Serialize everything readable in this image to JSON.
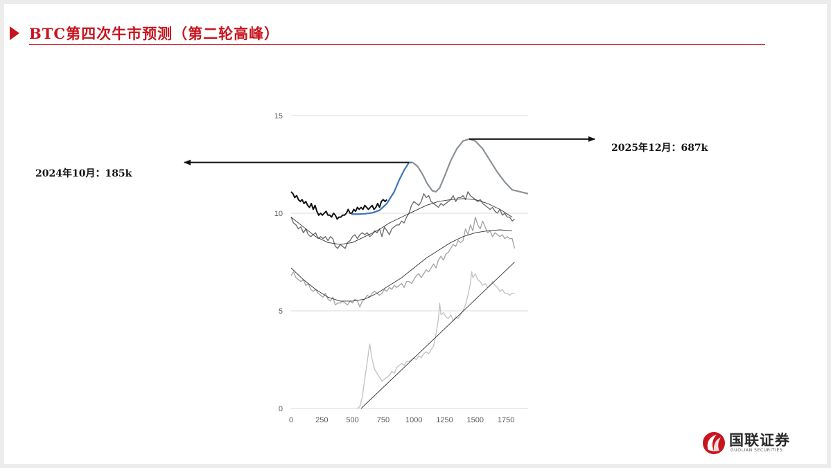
{
  "header": {
    "title": "BTC第四次牛市预测（第二轮高峰）"
  },
  "annotations": {
    "left": "2024年10月：185k",
    "right": "2025年12月：687k"
  },
  "logo": {
    "name": "国联证券",
    "subtitle": "GUOLIAN SECURITIES",
    "icon": "guolian-logo-icon"
  },
  "colors": {
    "accent": "#c8141e",
    "projection": "#3f74b8",
    "peak_curve": "#8a9197"
  },
  "chart_data": {
    "type": "line",
    "title": "",
    "xlabel": "",
    "ylabel": "",
    "xlim": [
      0,
      1930
    ],
    "ylim": [
      0,
      15
    ],
    "xticks": [
      0,
      250,
      500,
      750,
      1000,
      1250,
      1500,
      1750
    ],
    "yticks": [
      0,
      5,
      10,
      15
    ],
    "grid": "horizontal",
    "series": [
      {
        "kind": "price",
        "color": "#c4c4c4",
        "x": [
          540,
          560,
          580,
          600,
          620,
          640,
          660,
          680,
          700,
          720,
          740,
          760,
          780,
          800,
          820,
          840,
          860,
          880,
          900,
          920,
          940,
          960,
          980,
          1000,
          1020,
          1040,
          1060,
          1080,
          1100,
          1120,
          1140,
          1160,
          1180,
          1200,
          1210,
          1220,
          1240,
          1260,
          1280,
          1300,
          1320,
          1340,
          1360,
          1380,
          1400,
          1420,
          1440,
          1460,
          1470,
          1480,
          1500,
          1520,
          1540,
          1560,
          1580,
          1600,
          1620,
          1640,
          1660,
          1680,
          1700,
          1720,
          1740,
          1760,
          1780,
          1800,
          1820
        ],
        "y": [
          0.0,
          0.1,
          0.6,
          1.5,
          2.4,
          3.3,
          2.5,
          2.0,
          1.8,
          1.6,
          1.4,
          1.5,
          1.6,
          1.7,
          1.9,
          1.8,
          2.1,
          2.2,
          2.3,
          2.2,
          2.4,
          2.4,
          2.5,
          2.6,
          2.5,
          2.7,
          2.6,
          2.8,
          2.9,
          2.8,
          3.0,
          3.2,
          3.8,
          4.6,
          5.4,
          4.8,
          4.9,
          4.7,
          4.6,
          4.8,
          4.5,
          4.7,
          4.6,
          4.8,
          5.0,
          5.3,
          5.8,
          6.4,
          7.0,
          6.7,
          6.9,
          6.6,
          6.5,
          6.3,
          6.4,
          6.2,
          6.3,
          6.5,
          6.3,
          6.2,
          6.0,
          6.1,
          5.9,
          5.9,
          5.8,
          5.9,
          5.9
        ]
      },
      {
        "kind": "price",
        "color": "#a6a6a6",
        "x": [
          0,
          20,
          40,
          60,
          80,
          100,
          120,
          140,
          160,
          180,
          200,
          220,
          240,
          260,
          280,
          300,
          320,
          340,
          360,
          380,
          400,
          420,
          440,
          460,
          480,
          500,
          520,
          540,
          560,
          580,
          600,
          620,
          640,
          660,
          680,
          700,
          720,
          740,
          760,
          780,
          800,
          820,
          840,
          860,
          880,
          900,
          920,
          940,
          960,
          980,
          1000,
          1020,
          1040,
          1060,
          1080,
          1100,
          1120,
          1140,
          1160,
          1180,
          1200,
          1220,
          1240,
          1260,
          1280,
          1300,
          1320,
          1340,
          1360,
          1380,
          1400,
          1420,
          1440,
          1460,
          1480,
          1500,
          1520,
          1540,
          1560,
          1580,
          1600,
          1620,
          1640,
          1660,
          1680,
          1700,
          1720,
          1740,
          1760,
          1780,
          1800,
          1820
        ],
        "y": [
          6.8,
          7.0,
          6.7,
          6.6,
          6.5,
          6.6,
          6.3,
          6.4,
          6.1,
          6.0,
          6.1,
          5.9,
          5.8,
          5.7,
          5.9,
          5.6,
          5.5,
          5.7,
          5.3,
          5.4,
          5.4,
          5.5,
          5.4,
          5.3,
          5.5,
          5.4,
          5.6,
          5.5,
          5.2,
          5.5,
          5.6,
          5.8,
          5.7,
          5.9,
          6.0,
          5.9,
          5.8,
          5.9,
          6.1,
          6.0,
          6.2,
          6.1,
          6.3,
          6.2,
          6.3,
          6.4,
          6.2,
          6.5,
          6.5,
          6.4,
          6.6,
          6.8,
          6.9,
          6.7,
          6.9,
          7.1,
          7.0,
          7.2,
          7.4,
          7.2,
          7.6,
          7.8,
          7.6,
          7.9,
          8.0,
          8.2,
          8.4,
          8.3,
          8.6,
          8.5,
          8.6,
          9.2,
          8.9,
          9.4,
          9.1,
          9.8,
          9.4,
          9.2,
          9.6,
          9.3,
          9.0,
          9.1,
          8.8,
          9.0,
          8.9,
          8.8,
          8.9,
          8.7,
          8.8,
          8.7,
          8.7,
          8.2
        ]
      },
      {
        "kind": "price",
        "color": "#6e6e6e",
        "x": [
          0,
          20,
          40,
          60,
          80,
          100,
          120,
          140,
          160,
          180,
          200,
          220,
          240,
          260,
          280,
          300,
          320,
          340,
          360,
          380,
          400,
          420,
          440,
          460,
          480,
          500,
          520,
          540,
          560,
          580,
          600,
          620,
          640,
          660,
          680,
          700,
          720,
          740,
          760,
          780,
          800,
          820,
          840,
          860,
          880,
          900,
          920,
          940,
          960,
          980,
          1000,
          1020,
          1040,
          1060,
          1080,
          1100,
          1120,
          1140,
          1160,
          1180,
          1200,
          1220,
          1240,
          1260,
          1280,
          1300,
          1320,
          1340,
          1360,
          1380,
          1400,
          1420,
          1440,
          1460,
          1480,
          1500,
          1520,
          1540,
          1560,
          1580,
          1600,
          1620,
          1640,
          1660,
          1680,
          1700,
          1720,
          1740,
          1760,
          1780,
          1800,
          1820
        ],
        "y": [
          9.8,
          9.5,
          9.4,
          9.2,
          9.3,
          9.0,
          9.2,
          8.9,
          8.8,
          8.9,
          9.0,
          8.7,
          8.8,
          8.7,
          8.8,
          8.6,
          8.8,
          8.7,
          8.3,
          8.2,
          8.4,
          8.3,
          8.2,
          8.5,
          8.6,
          8.8,
          8.9,
          8.7,
          8.9,
          9.0,
          8.9,
          9.0,
          8.8,
          8.9,
          9.1,
          9.0,
          9.2,
          8.8,
          9.3,
          9.1,
          8.9,
          9.2,
          9.3,
          9.4,
          9.4,
          9.6,
          9.5,
          9.8,
          10.0,
          10.4,
          10.6,
          10.5,
          10.4,
          10.6,
          11.0,
          10.8,
          10.9,
          10.6,
          10.5,
          10.4,
          10.3,
          10.5,
          10.4,
          10.5,
          10.6,
          10.7,
          10.9,
          10.6,
          10.8,
          10.8,
          10.9,
          10.7,
          11.1,
          10.9,
          10.8,
          10.7,
          10.6,
          10.7,
          10.5,
          10.4,
          10.3,
          10.2,
          10.3,
          10.1,
          10.0,
          10.2,
          9.9,
          10.0,
          9.8,
          9.8,
          9.6,
          9.7
        ]
      },
      {
        "kind": "price",
        "color": "#111111",
        "x": [
          0,
          15,
          30,
          45,
          60,
          75,
          90,
          105,
          120,
          135,
          150,
          165,
          180,
          195,
          210,
          225,
          240,
          255,
          270,
          285,
          300,
          315,
          330,
          345,
          360,
          375,
          390,
          405,
          420,
          435,
          450,
          465,
          480,
          495,
          510,
          525,
          540,
          555,
          570,
          585,
          600,
          615,
          630,
          645,
          660,
          675,
          690,
          705,
          720,
          735,
          750,
          765,
          780
        ],
        "y": [
          11.1,
          11.0,
          10.8,
          10.9,
          10.7,
          10.6,
          10.7,
          10.5,
          10.6,
          10.4,
          10.3,
          10.5,
          10.2,
          10.4,
          10.1,
          9.9,
          10.0,
          9.9,
          10.0,
          10.1,
          9.9,
          9.9,
          9.8,
          10.0,
          9.9,
          9.7,
          9.8,
          9.8,
          9.9,
          9.9,
          10.0,
          10.2,
          10.0,
          10.0,
          10.2,
          10.1,
          10.3,
          10.2,
          10.3,
          10.2,
          10.4,
          10.3,
          10.2,
          10.3,
          10.4,
          10.2,
          10.3,
          10.5,
          10.3,
          10.6,
          10.7,
          10.6,
          10.7
        ]
      },
      {
        "kind": "trend",
        "color": "#333333",
        "x": [
          0,
          100,
          200,
          300,
          400,
          500,
          600,
          700,
          800,
          900,
          1000,
          1100,
          1200,
          1300,
          1400,
          1500,
          1600,
          1700,
          1800
        ],
        "y": [
          7.2,
          6.6,
          6.1,
          5.7,
          5.5,
          5.5,
          5.6,
          5.9,
          6.3,
          6.7,
          7.2,
          7.7,
          8.1,
          8.5,
          8.8,
          9.0,
          9.1,
          9.15,
          9.1
        ]
      },
      {
        "kind": "trend",
        "color": "#333333",
        "x": [
          0,
          100,
          200,
          300,
          400,
          500,
          600,
          700,
          800,
          900,
          1000,
          1100,
          1200,
          1300,
          1400,
          1500,
          1600,
          1700,
          1800
        ],
        "y": [
          9.8,
          9.3,
          8.8,
          8.5,
          8.4,
          8.5,
          8.8,
          9.1,
          9.5,
          9.8,
          10.1,
          10.4,
          10.6,
          10.7,
          10.75,
          10.7,
          10.5,
          10.2,
          9.8
        ]
      },
      {
        "kind": "trend",
        "color": "#333333",
        "x": [
          570,
          1820
        ],
        "y": [
          0.0,
          7.5
        ]
      },
      {
        "kind": "projection",
        "color": "#3f74b8",
        "x": [
          490,
          540,
          600,
          660,
          720,
          780,
          840,
          880,
          920,
          960,
          990
        ],
        "y": [
          9.95,
          9.95,
          9.97,
          10.02,
          10.15,
          10.5,
          11.1,
          11.7,
          12.2,
          12.6,
          12.6
        ]
      },
      {
        "kind": "projection",
        "color": "#8a9197",
        "x": [
          990,
          1030,
          1070,
          1110,
          1150,
          1180,
          1210,
          1250,
          1300,
          1350,
          1400,
          1450,
          1500,
          1560,
          1620,
          1680,
          1740,
          1800,
          1930
        ],
        "y": [
          12.6,
          12.4,
          12.0,
          11.5,
          11.15,
          11.1,
          11.3,
          11.9,
          12.7,
          13.3,
          13.7,
          13.8,
          13.7,
          13.3,
          12.7,
          12.1,
          11.6,
          11.2,
          11.0
        ]
      }
    ]
  }
}
